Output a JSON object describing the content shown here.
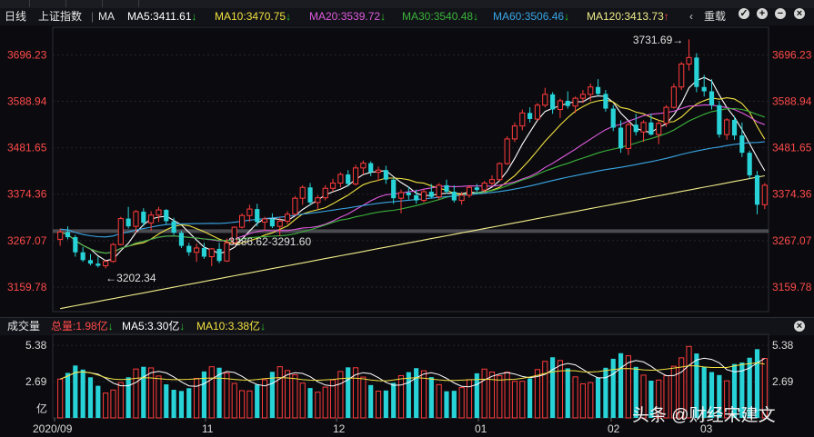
{
  "chart_data": {
    "type": "candlestick",
    "title": "上证指数",
    "period": "日线",
    "legend": [
      {
        "name": "MA",
        "value": "",
        "color": "#e8e8e8"
      },
      {
        "name": "MA5",
        "value": "3411.61",
        "color": "#ffffff"
      },
      {
        "name": "MA10",
        "value": "3470.75",
        "color": "#f0e040"
      },
      {
        "name": "MA20",
        "value": "3539.72",
        "color": "#e05ae0"
      },
      {
        "name": "MA30",
        "value": "3540.48",
        "color": "#3bb33b"
      },
      {
        "name": "MA60",
        "value": "3506.46",
        "color": "#3aa6e6"
      },
      {
        "name": "MA120",
        "value": "3413.73",
        "color": "#f0ec8a"
      }
    ],
    "y_ticks": [
      "3696.23",
      "3588.94",
      "3481.65",
      "3374.36",
      "3267.07",
      "3159.78"
    ],
    "ylim": [
      3103,
      3760
    ],
    "annotations": [
      "3731.69→",
      "3286.62-3291.60",
      "←3202.34"
    ],
    "x_ticks": [
      "2020/09",
      "11",
      "12",
      "01",
      "02",
      "03"
    ],
    "ohlc": [
      [
        3270,
        3295,
        3255,
        3287
      ],
      [
        3287,
        3300,
        3270,
        3275
      ],
      [
        3275,
        3280,
        3230,
        3240
      ],
      [
        3240,
        3252,
        3218,
        3222
      ],
      [
        3222,
        3236,
        3210,
        3214
      ],
      [
        3214,
        3230,
        3205,
        3209
      ],
      [
        3209,
        3222,
        3203,
        3219
      ],
      [
        3219,
        3262,
        3216,
        3258
      ],
      [
        3258,
        3322,
        3256,
        3318
      ],
      [
        3318,
        3345,
        3295,
        3300
      ],
      [
        3300,
        3338,
        3285,
        3334
      ],
      [
        3334,
        3342,
        3300,
        3308
      ],
      [
        3308,
        3335,
        3290,
        3326
      ],
      [
        3326,
        3345,
        3310,
        3338
      ],
      [
        3338,
        3340,
        3305,
        3312
      ],
      [
        3312,
        3320,
        3280,
        3285
      ],
      [
        3285,
        3290,
        3250,
        3255
      ],
      [
        3255,
        3262,
        3232,
        3240
      ],
      [
        3240,
        3260,
        3218,
        3250
      ],
      [
        3250,
        3262,
        3225,
        3230
      ],
      [
        3230,
        3250,
        3208,
        3248
      ],
      [
        3248,
        3262,
        3215,
        3220
      ],
      [
        3220,
        3272,
        3218,
        3262
      ],
      [
        3262,
        3300,
        3258,
        3298
      ],
      [
        3298,
        3330,
        3295,
        3325
      ],
      [
        3325,
        3350,
        3310,
        3340
      ],
      [
        3340,
        3352,
        3300,
        3310
      ],
      [
        3310,
        3322,
        3290,
        3317
      ],
      [
        3317,
        3330,
        3296,
        3300
      ],
      [
        3300,
        3320,
        3278,
        3312
      ],
      [
        3312,
        3335,
        3305,
        3328
      ],
      [
        3328,
        3370,
        3325,
        3365
      ],
      [
        3365,
        3395,
        3350,
        3390
      ],
      [
        3390,
        3400,
        3348,
        3355
      ],
      [
        3355,
        3372,
        3340,
        3366
      ],
      [
        3366,
        3395,
        3360,
        3388
      ],
      [
        3388,
        3410,
        3380,
        3400
      ],
      [
        3400,
        3425,
        3390,
        3420
      ],
      [
        3420,
        3430,
        3392,
        3398
      ],
      [
        3398,
        3442,
        3394,
        3435
      ],
      [
        3435,
        3452,
        3420,
        3446
      ],
      [
        3446,
        3450,
        3416,
        3425
      ],
      [
        3425,
        3438,
        3405,
        3430
      ],
      [
        3430,
        3440,
        3398,
        3408
      ],
      [
        3408,
        3412,
        3352,
        3365
      ],
      [
        3365,
        3385,
        3330,
        3378
      ],
      [
        3378,
        3392,
        3362,
        3372
      ],
      [
        3372,
        3385,
        3352,
        3360
      ],
      [
        3360,
        3385,
        3355,
        3380
      ],
      [
        3380,
        3398,
        3365,
        3368
      ],
      [
        3368,
        3400,
        3362,
        3395
      ],
      [
        3395,
        3408,
        3375,
        3380
      ],
      [
        3380,
        3395,
        3355,
        3360
      ],
      [
        3360,
        3380,
        3350,
        3372
      ],
      [
        3372,
        3395,
        3366,
        3390
      ],
      [
        3390,
        3398,
        3376,
        3384
      ],
      [
        3384,
        3405,
        3378,
        3400
      ],
      [
        3400,
        3418,
        3395,
        3408
      ],
      [
        3408,
        3448,
        3405,
        3445
      ],
      [
        3445,
        3508,
        3442,
        3502
      ],
      [
        3502,
        3540,
        3495,
        3532
      ],
      [
        3532,
        3570,
        3522,
        3562
      ],
      [
        3562,
        3575,
        3540,
        3548
      ],
      [
        3548,
        3585,
        3545,
        3580
      ],
      [
        3580,
        3620,
        3575,
        3605
      ],
      [
        3605,
        3610,
        3560,
        3570
      ],
      [
        3570,
        3595,
        3550,
        3590
      ],
      [
        3590,
        3612,
        3572,
        3578
      ],
      [
        3578,
        3600,
        3562,
        3596
      ],
      [
        3596,
        3615,
        3585,
        3605
      ],
      [
        3605,
        3630,
        3590,
        3622
      ],
      [
        3622,
        3640,
        3600,
        3606
      ],
      [
        3606,
        3615,
        3565,
        3572
      ],
      [
        3572,
        3580,
        3520,
        3528
      ],
      [
        3528,
        3545,
        3470,
        3480
      ],
      [
        3480,
        3540,
        3465,
        3535
      ],
      [
        3535,
        3560,
        3510,
        3518
      ],
      [
        3518,
        3545,
        3495,
        3540
      ],
      [
        3540,
        3560,
        3510,
        3512
      ],
      [
        3512,
        3545,
        3490,
        3538
      ],
      [
        3538,
        3580,
        3530,
        3575
      ],
      [
        3575,
        3630,
        3572,
        3622
      ],
      [
        3622,
        3680,
        3615,
        3675
      ],
      [
        3675,
        3732,
        3660,
        3690
      ],
      [
        3690,
        3700,
        3610,
        3622
      ],
      [
        3622,
        3650,
        3600,
        3612
      ],
      [
        3612,
        3640,
        3570,
        3580
      ],
      [
        3580,
        3590,
        3505,
        3512
      ],
      [
        3512,
        3550,
        3500,
        3546
      ],
      [
        3546,
        3555,
        3500,
        3510
      ],
      [
        3510,
        3540,
        3460,
        3470
      ],
      [
        3470,
        3475,
        3410,
        3418
      ],
      [
        3418,
        3428,
        3328,
        3350
      ],
      [
        3350,
        3400,
        3340,
        3395
      ]
    ],
    "volume_ticks": [
      "5.38",
      "2.69",
      "亿"
    ],
    "volume_unit": "亿",
    "volume_ylim": [
      0,
      6.2
    ]
  },
  "volume_legend": [
    {
      "name": "成交量",
      "value": "",
      "color": "#e8e8e8"
    },
    {
      "name": "总量",
      "value": "1.98亿",
      "color": "#ff4a4a"
    },
    {
      "name": "MA5",
      "value": "3.30亿",
      "color": "#ffffff"
    },
    {
      "name": "MA10",
      "value": "3.38亿",
      "color": "#f0e040"
    }
  ],
  "ui": {
    "rights_label": "重载",
    "watermark": "头条 @财经宋建文"
  }
}
